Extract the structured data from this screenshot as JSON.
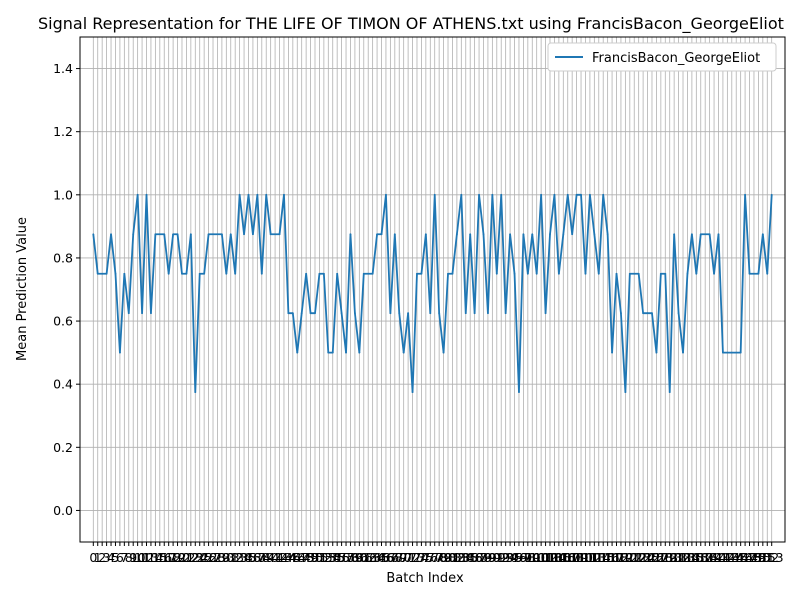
{
  "colors": {
    "series": "#1f77b4",
    "grid": "#b0b0b0",
    "axis": "#000000",
    "background": "#ffffff",
    "legend_border": "#cccccc"
  },
  "chart_data": {
    "type": "line",
    "title": "Signal Representation for THE LIFE OF TIMON OF ATHENS.txt using FrancisBacon_GeorgeEliot",
    "xlabel": "Batch Index",
    "ylabel": "Mean Prediction Value",
    "xlim": [
      -3,
      156
    ],
    "ylim": [
      -0.1,
      1.5
    ],
    "yticks": [
      0.0,
      0.2,
      0.4,
      0.6,
      0.8,
      1.0,
      1.2,
      1.4
    ],
    "ytick_labels": [
      "0.0",
      "0.2",
      "0.4",
      "0.6",
      "0.8",
      "1.0",
      "1.2",
      "1.4"
    ],
    "grid": true,
    "legend_position": "top-right",
    "series": [
      {
        "name": "FrancisBacon_GeorgeEliot",
        "x": [
          0,
          1,
          2,
          3,
          4,
          5,
          6,
          7,
          8,
          9,
          10,
          11,
          12,
          13,
          14,
          15,
          16,
          17,
          18,
          19,
          20,
          21,
          22,
          23,
          24,
          25,
          26,
          27,
          28,
          29,
          30,
          31,
          32,
          33,
          34,
          35,
          36,
          37,
          38,
          39,
          40,
          41,
          42,
          43,
          44,
          45,
          46,
          47,
          48,
          49,
          50,
          51,
          52,
          53,
          54,
          55,
          56,
          57,
          58,
          59,
          60,
          61,
          62,
          63,
          64,
          65,
          66,
          67,
          68,
          69,
          70,
          71,
          72,
          73,
          74,
          75,
          76,
          77,
          78,
          79,
          80,
          81,
          82,
          83,
          84,
          85,
          86,
          87,
          88,
          89,
          90,
          91,
          92,
          93,
          94,
          95,
          96,
          97,
          98,
          99,
          100,
          101,
          102,
          103,
          104,
          105,
          106,
          107,
          108,
          109,
          110,
          111,
          112,
          113,
          114,
          115,
          116,
          117,
          118,
          119,
          120,
          121,
          122,
          123,
          124,
          125,
          126,
          127,
          128,
          129,
          130,
          131,
          132,
          133,
          134,
          135,
          136,
          137,
          138,
          139,
          140,
          141,
          142,
          143,
          144,
          145,
          146,
          147,
          148,
          149,
          150,
          151,
          152,
          153
        ],
        "values": [
          0.875,
          0.75,
          0.75,
          0.75,
          0.875,
          0.75,
          0.5,
          0.75,
          0.625,
          0.875,
          1.0,
          0.625,
          1.0,
          0.625,
          0.875,
          0.875,
          0.875,
          0.75,
          0.875,
          0.875,
          0.75,
          0.75,
          0.875,
          0.375,
          0.75,
          0.75,
          0.875,
          0.875,
          0.875,
          0.875,
          0.75,
          0.875,
          0.75,
          1.0,
          0.875,
          1.0,
          0.875,
          1.0,
          0.75,
          1.0,
          0.875,
          0.875,
          0.875,
          1.0,
          0.625,
          0.625,
          0.5,
          0.625,
          0.75,
          0.625,
          0.625,
          0.75,
          0.75,
          0.5,
          0.5,
          0.75,
          0.625,
          0.5,
          0.875,
          0.625,
          0.5,
          0.75,
          0.75,
          0.75,
          0.875,
          0.875,
          1.0,
          0.625,
          0.875,
          0.625,
          0.5,
          0.625,
          0.375,
          0.75,
          0.75,
          0.875,
          0.625,
          1.0,
          0.625,
          0.5,
          0.75,
          0.75,
          0.875,
          1.0,
          0.625,
          0.875,
          0.625,
          1.0,
          0.875,
          0.625,
          1.0,
          0.75,
          1.0,
          0.625,
          0.875,
          0.75,
          0.375,
          0.875,
          0.75,
          0.875,
          0.75,
          1.0,
          0.625,
          0.875,
          1.0,
          0.75,
          0.875,
          1.0,
          0.875,
          1.0,
          1.0,
          0.75,
          1.0,
          0.875,
          0.75,
          1.0,
          0.875,
          0.5,
          0.75,
          0.625,
          0.375,
          0.75,
          0.75,
          0.75,
          0.625,
          0.625,
          0.625,
          0.5,
          0.75,
          0.75,
          0.375,
          0.875,
          0.625,
          0.5,
          0.75,
          0.875,
          0.75,
          0.875,
          0.875,
          0.875,
          0.75,
          0.875,
          0.5,
          0.5,
          0.5,
          0.5,
          0.5,
          1.0,
          0.75,
          0.75,
          0.75,
          0.875,
          0.75,
          1.0
        ]
      }
    ],
    "xtick_labels": [
      "0",
      "1",
      "2",
      "3",
      "4",
      "5",
      "6",
      "7",
      "8",
      "9",
      "10",
      "11",
      "12",
      "13",
      "14",
      "15",
      "16",
      "17",
      "18",
      "19",
      "20",
      "21",
      "22",
      "23",
      "24",
      "25",
      "26",
      "27",
      "28",
      "29",
      "30",
      "31",
      "32",
      "33",
      "34",
      "35",
      "36",
      "37",
      "38",
      "39",
      "40",
      "41",
      "42",
      "43",
      "44",
      "45",
      "46",
      "47",
      "48",
      "49",
      "50",
      "51",
      "52",
      "53",
      "54",
      "55",
      "56",
      "57",
      "58",
      "59",
      "60",
      "61",
      "62",
      "63",
      "64",
      "65",
      "66",
      "67",
      "68",
      "69",
      "70",
      "71",
      "72",
      "73",
      "74",
      "75",
      "76",
      "77",
      "78",
      "79",
      "80",
      "81",
      "82",
      "83",
      "84",
      "85",
      "86",
      "87",
      "88",
      "89",
      "90",
      "91",
      "92",
      "93",
      "94",
      "95",
      "96",
      "97",
      "98",
      "99",
      "100",
      "101",
      "102",
      "103",
      "104",
      "105",
      "106",
      "107",
      "108",
      "109",
      "110",
      "111",
      "112",
      "113",
      "114",
      "115",
      "116",
      "117",
      "118",
      "119",
      "120",
      "121",
      "122",
      "123",
      "124",
      "125",
      "126",
      "127",
      "128",
      "129",
      "130",
      "131",
      "132",
      "133",
      "134",
      "135",
      "136",
      "137",
      "138",
      "139",
      "140",
      "141",
      "142",
      "143",
      "144",
      "145",
      "146",
      "147",
      "148",
      "149",
      "150",
      "151",
      "152",
      "153"
    ]
  }
}
